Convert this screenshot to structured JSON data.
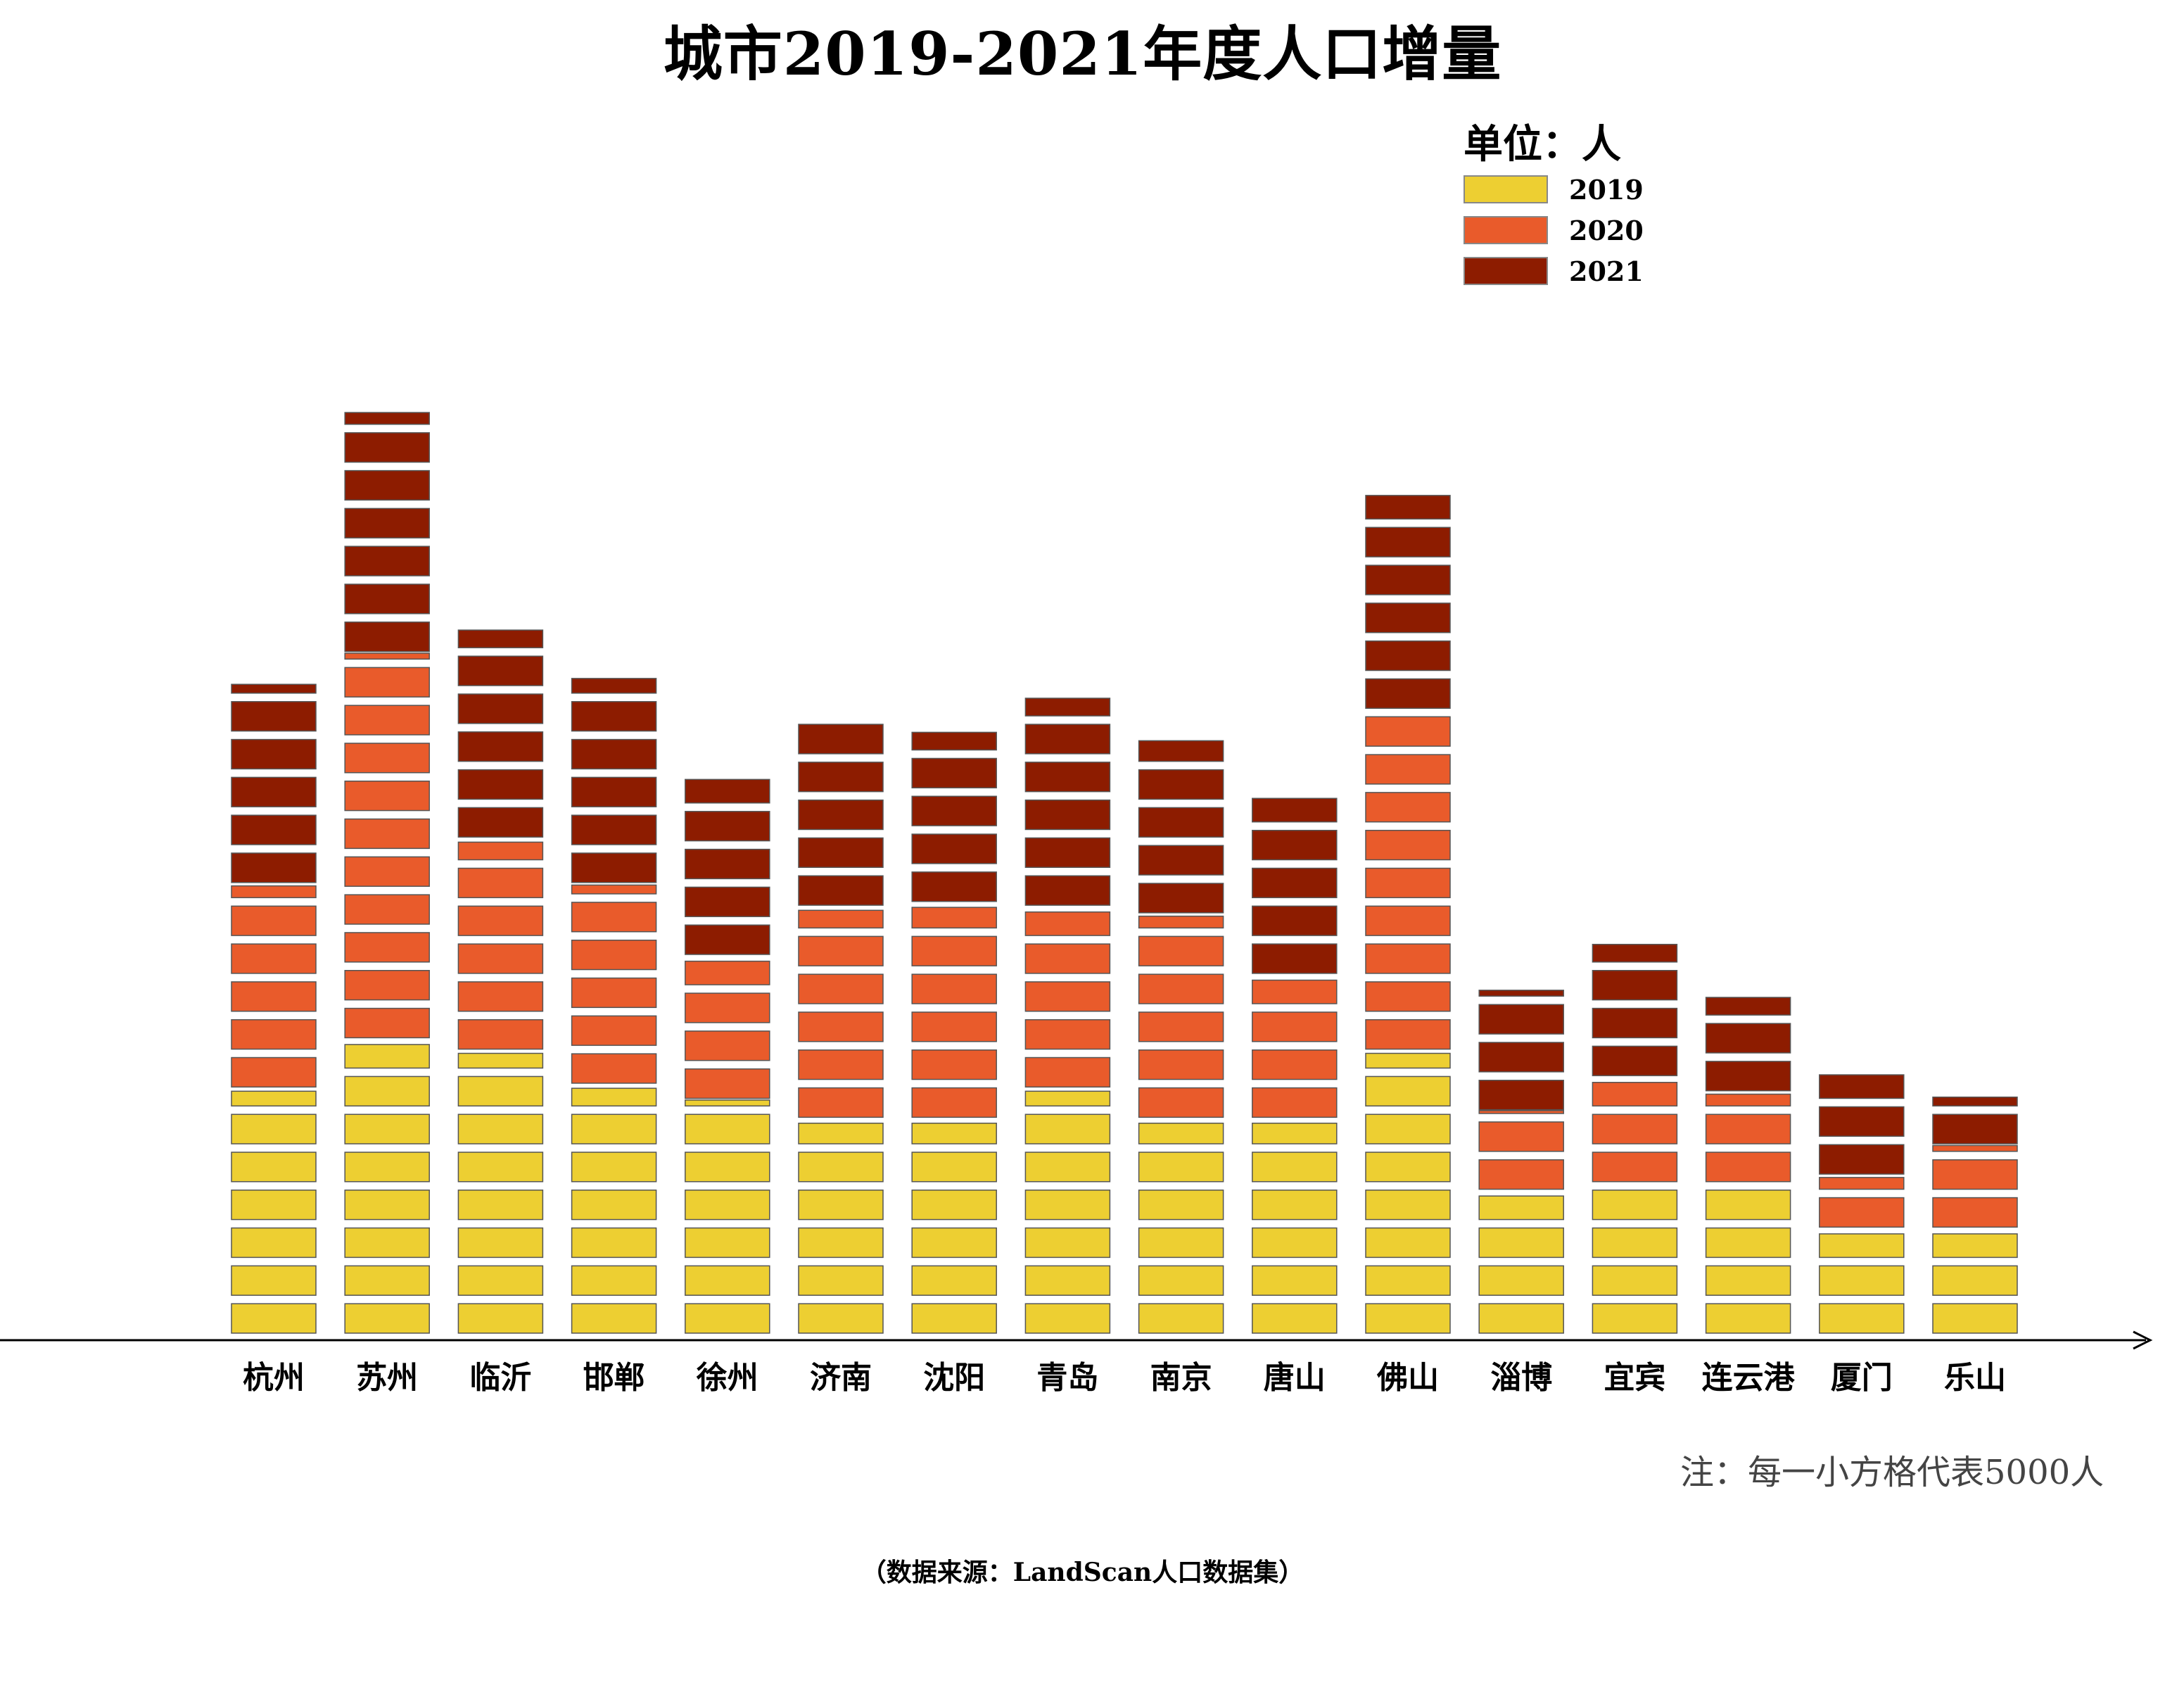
{
  "chart_data": {
    "type": "bar",
    "title": "城市2019-2021年度人口增量",
    "unit_label": "单位：人",
    "note": "注：每一小方格代表5000人",
    "source": "（数据来源：LandScan人口数据集）",
    "block_size": 5000,
    "categories": [
      "杭州",
      "苏州",
      "临沂",
      "邯郸",
      "徐州",
      "济南",
      "沈阳",
      "青岛",
      "南京",
      "唐山",
      "佛山",
      "淄博",
      "宜宾",
      "连云港",
      "厦门",
      "乐山"
    ],
    "series": [
      {
        "name": "2019",
        "color": "#EDCF32",
        "values": [
          32500,
          39000,
          37500,
          33000,
          31000,
          28500,
          28500,
          32500,
          28500,
          28500,
          37500,
          19000,
          20000,
          20000,
          14000,
          14000
        ]
      },
      {
        "name": "2020",
        "color": "#E95B2B",
        "values": [
          27000,
          51000,
          28000,
          26500,
          19000,
          28000,
          28500,
          24000,
          27000,
          19000,
          45000,
          10500,
          14000,
          12000,
          7000,
          11000
        ]
      },
      {
        "name": "2021",
        "color": "#8D1C00",
        "values": [
          26500,
          32000,
          28000,
          27500,
          24000,
          25000,
          23000,
          28000,
          23500,
          24000,
          29000,
          16000,
          18000,
          13000,
          14000,
          6500
        ]
      }
    ],
    "legend_position": "top-right",
    "grid": false
  }
}
